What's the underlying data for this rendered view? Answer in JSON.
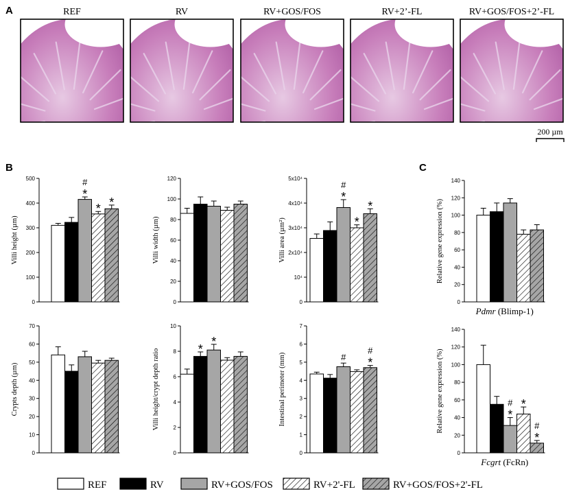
{
  "panels": {
    "A": "A",
    "B": "B",
    "C": "C"
  },
  "micrographs": {
    "labels": [
      "REF",
      "RV",
      "RV+GOS/FOS",
      "RV+2’-FL",
      "RV+GOS/FOS+2’-FL"
    ],
    "scale_bar": "200 µm"
  },
  "groups": [
    "REF",
    "RV",
    "RV+GOS/FOS",
    "RV+2'-FL",
    "RV+GOS/FOS+2'-FL"
  ],
  "colors": {
    "REF": "#ffffff",
    "RV": "#000000",
    "RV+GOS/FOS": "#a6a6a6",
    "RV+2'-FL": "#ffffff",
    "RV+GOS/FOS+2'-FL": "#a6a6a6"
  },
  "legend": {
    "items": [
      "REF",
      "RV",
      "RV+GOS/FOS",
      "RV+2'-FL",
      "RV+GOS/FOS+2'-FL"
    ],
    "placement": "bottom"
  },
  "chart_data": [
    {
      "id": "villi-height",
      "type": "bar",
      "ylabel": "Villi height (µm)",
      "xlabel": "",
      "ylim": [
        0,
        500
      ],
      "yticks": [
        "0",
        "100",
        "200",
        "300",
        "400",
        "500"
      ],
      "values": [
        310,
        322,
        415,
        356,
        377
      ],
      "errors": [
        8,
        20,
        10,
        10,
        15
      ],
      "annotations": [
        [],
        [],
        [
          "#",
          "*"
        ],
        [
          "*"
        ],
        [
          "*"
        ]
      ]
    },
    {
      "id": "villi-width",
      "type": "bar",
      "ylabel": "Villi width (µm)",
      "xlabel": "",
      "ylim": [
        0,
        120
      ],
      "yticks": [
        "0",
        "20",
        "40",
        "60",
        "80",
        "100",
        "120"
      ],
      "values": [
        86,
        95,
        93,
        89,
        95
      ],
      "errors": [
        5,
        7,
        5,
        3,
        3
      ],
      "annotations": [
        [],
        [],
        [],
        [],
        []
      ]
    },
    {
      "id": "villi-area",
      "type": "bar",
      "ylabel": "Villi area (µm²)",
      "xlabel": "",
      "ylim": [
        0,
        50000
      ],
      "yticks": [
        "0",
        "10⁴",
        "2x10⁴",
        "3x10⁴",
        "4x10⁴",
        "5x10⁴"
      ],
      "values": [
        25700,
        28900,
        38200,
        30000,
        35700
      ],
      "errors": [
        1800,
        3500,
        3200,
        1200,
        2000
      ],
      "annotations": [
        [],
        [],
        [
          "#",
          "*"
        ],
        [
          "*"
        ],
        [
          "*"
        ]
      ]
    },
    {
      "id": "crypts-depth",
      "type": "bar",
      "ylabel": "Crypts depth (µm)",
      "xlabel": "",
      "ylim": [
        0,
        70
      ],
      "yticks": [
        "0",
        "10",
        "20",
        "30",
        "40",
        "50",
        "60",
        "70"
      ],
      "values": [
        54,
        45,
        53,
        49.5,
        51
      ],
      "errors": [
        4.5,
        3.5,
        3,
        1.5,
        1.2
      ],
      "annotations": [
        [],
        [],
        [],
        [],
        []
      ]
    },
    {
      "id": "villi-crypt-ratio",
      "type": "bar",
      "ylabel": "Villi height/crypt depth ratio",
      "xlabel": "",
      "ylim": [
        0,
        10
      ],
      "yticks": [
        "0",
        "2",
        "4",
        "6",
        "8",
        "10"
      ],
      "values": [
        6.2,
        7.6,
        8.1,
        7.3,
        7.6
      ],
      "errors": [
        0.4,
        0.35,
        0.45,
        0.2,
        0.35
      ],
      "annotations": [
        [],
        [
          "*"
        ],
        [
          "*"
        ],
        [],
        []
      ]
    },
    {
      "id": "intestinal-perimeter",
      "type": "bar",
      "ylabel": "Intestinal perimeter (mm)",
      "xlabel": "",
      "ylim": [
        0,
        7
      ],
      "yticks": [
        "0",
        "1",
        "2",
        "3",
        "4",
        "5",
        "6",
        "7"
      ],
      "values": [
        4.35,
        4.12,
        4.75,
        4.48,
        4.7
      ],
      "errors": [
        0.1,
        0.2,
        0.2,
        0.1,
        0.12
      ],
      "annotations": [
        [],
        [],
        [
          "#"
        ],
        [],
        [
          "#",
          "*"
        ]
      ]
    },
    {
      "id": "pdmr",
      "type": "bar",
      "ylabel": "Relative gene expression (%)",
      "xlabel_italic": "Pdmr",
      "xlabel_rest": " (Blimp-1)",
      "ylim": [
        0,
        140
      ],
      "yticks": [
        "0",
        "20",
        "40",
        "60",
        "80",
        "100",
        "120",
        "140"
      ],
      "values": [
        100,
        104,
        114,
        78,
        83
      ],
      "errors": [
        8,
        10,
        5,
        5,
        6
      ],
      "annotations": [
        [],
        [],
        [],
        [],
        []
      ]
    },
    {
      "id": "fcgrt",
      "type": "bar",
      "ylabel": "Relative gene expression (%)",
      "xlabel_italic": "Fcgrt",
      "xlabel_rest": " (FcRn)",
      "ylim": [
        0,
        140
      ],
      "yticks": [
        "0",
        "20",
        "40",
        "60",
        "80",
        "100",
        "120",
        "140"
      ],
      "values": [
        100,
        55,
        31,
        44,
        11
      ],
      "errors": [
        22,
        9,
        9,
        8,
        3
      ],
      "annotations": [
        [],
        [],
        [
          "#",
          "*"
        ],
        [
          "*"
        ],
        [
          "#",
          "*"
        ]
      ]
    }
  ]
}
